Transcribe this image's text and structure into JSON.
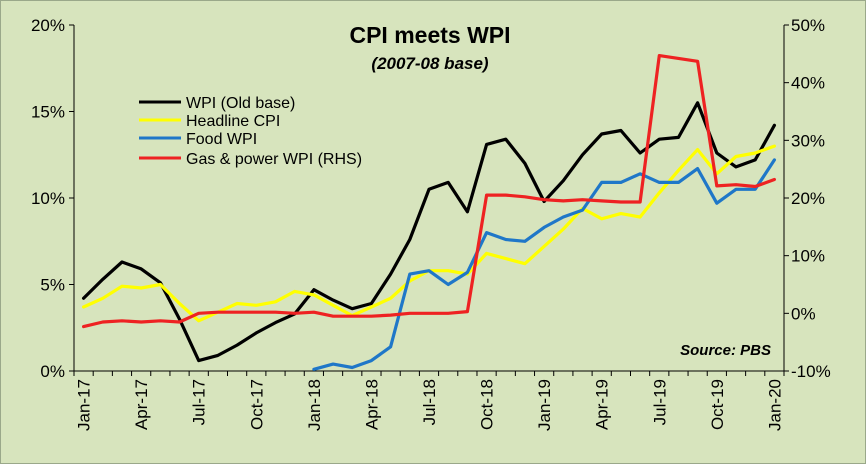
{
  "chart_data": {
    "type": "line",
    "title": "CPI meets WPI",
    "subtitle": "(2007-08 base)",
    "source": "Source: PBS",
    "x_tick_labels": [
      "Jan-17",
      "Apr-17",
      "Jul-17",
      "Oct-17",
      "Jan-18",
      "Apr-18",
      "Jul-18",
      "Oct-18",
      "Jan-19",
      "Apr-19",
      "Jul-19",
      "Oct-19",
      "Jan-20"
    ],
    "x": [
      "Jan-17",
      "Feb-17",
      "Mar-17",
      "Apr-17",
      "May-17",
      "Jun-17",
      "Jul-17",
      "Aug-17",
      "Sep-17",
      "Oct-17",
      "Nov-17",
      "Dec-17",
      "Jan-18",
      "Feb-18",
      "Mar-18",
      "Apr-18",
      "May-18",
      "Jun-18",
      "Jul-18",
      "Aug-18",
      "Sep-18",
      "Oct-18",
      "Nov-18",
      "Dec-18",
      "Jan-19",
      "Feb-19",
      "Mar-19",
      "Apr-19",
      "May-19",
      "Jun-19",
      "Jul-19",
      "Aug-19",
      "Sep-19",
      "Oct-19",
      "Nov-19",
      "Dec-19",
      "Jan-20"
    ],
    "left_axis": {
      "ylim": [
        0,
        20
      ],
      "ticks": [
        "0%",
        "5%",
        "10%",
        "15%",
        "20%"
      ],
      "tick_values": [
        0,
        5,
        10,
        15,
        20
      ]
    },
    "right_axis": {
      "ylim": [
        -10,
        50
      ],
      "ticks": [
        "-10%",
        "0%",
        "10%",
        "20%",
        "30%",
        "40%",
        "50%"
      ],
      "tick_values": [
        -10,
        0,
        10,
        20,
        30,
        40,
        50
      ]
    },
    "grid": false,
    "legend_position": "top-left",
    "series": [
      {
        "name": "WPI (Old base)",
        "axis": "left",
        "color": "#000000",
        "values": [
          4.2,
          5.3,
          6.3,
          5.9,
          5.1,
          3.0,
          0.6,
          0.9,
          1.5,
          2.2,
          2.8,
          3.3,
          4.7,
          4.1,
          3.6,
          3.9,
          5.6,
          7.6,
          10.5,
          10.9,
          9.2,
          13.1,
          13.4,
          12.0,
          9.8,
          11.0,
          12.5,
          13.7,
          13.9,
          12.6,
          13.4,
          13.5,
          15.5,
          12.6,
          11.8,
          12.2,
          14.2
        ]
      },
      {
        "name": "Headline CPI",
        "axis": "left",
        "color": "#ffff00",
        "values": [
          3.7,
          4.2,
          4.9,
          4.8,
          5.0,
          3.9,
          2.9,
          3.4,
          3.9,
          3.8,
          4.0,
          4.6,
          4.4,
          3.8,
          3.2,
          3.7,
          4.2,
          5.2,
          5.8,
          5.8,
          5.6,
          6.8,
          6.5,
          6.2,
          7.2,
          8.2,
          9.4,
          8.8,
          9.1,
          8.9,
          10.3,
          11.6,
          12.8,
          11.4,
          12.4,
          12.6,
          13.0
        ]
      },
      {
        "name": "Food WPI",
        "axis": "left",
        "color": "#1f77c8",
        "values": [
          null,
          null,
          null,
          null,
          null,
          null,
          null,
          null,
          null,
          null,
          null,
          null,
          0.1,
          0.4,
          0.2,
          0.6,
          1.4,
          5.6,
          5.8,
          5.0,
          5.7,
          8.0,
          7.6,
          7.5,
          8.3,
          8.9,
          9.3,
          10.9,
          10.9,
          11.4,
          10.9,
          10.9,
          11.7,
          9.7,
          10.5,
          10.5,
          12.2
        ]
      },
      {
        "name": "Gas & power WPI (RHS)",
        "axis": "right",
        "color": "#ee2222",
        "values": [
          -2.3,
          -1.5,
          -1.3,
          -1.5,
          -1.3,
          -1.5,
          0.0,
          0.2,
          0.2,
          0.2,
          0.2,
          0.0,
          0.2,
          -0.5,
          -0.5,
          -0.5,
          -0.3,
          0.0,
          0.0,
          0.0,
          0.3,
          20.5,
          20.5,
          20.2,
          19.7,
          19.5,
          19.7,
          19.5,
          19.3,
          19.3,
          44.7,
          44.2,
          43.7,
          22.1,
          22.3,
          22.0,
          23.2
        ]
      }
    ]
  }
}
